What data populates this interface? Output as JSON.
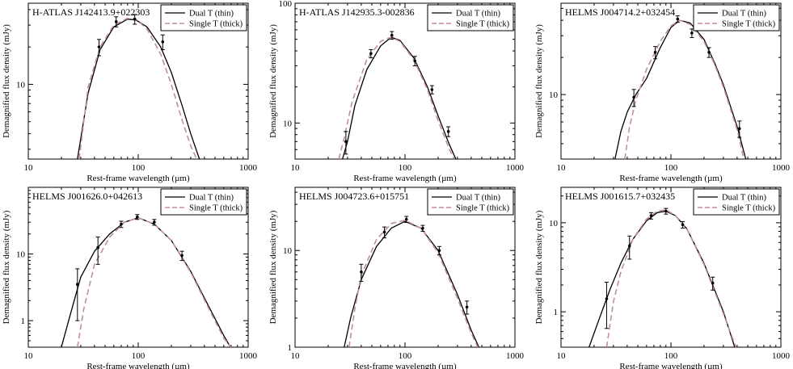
{
  "chart_data": [
    {
      "type": "line",
      "title": "H-ATLAS J142413.9+022303",
      "xlabel": "Rest-frame wavelength (µm)",
      "ylabel": "Demagnified flux density (mJy)",
      "xscale": "log",
      "yscale": "log",
      "xlim": [
        10,
        1000
      ],
      "ylim": [
        2.5,
        45
      ],
      "xticks": [
        10,
        100,
        1000
      ],
      "yticks": [
        10
      ],
      "legend_placement": "top-right",
      "series": [
        {
          "name": "Dual T (thin)",
          "style": "solid",
          "color": "#000000",
          "x": [
            28,
            35,
            45,
            60,
            80,
            95,
            120,
            160,
            200,
            250,
            300,
            360
          ],
          "y": [
            2.5,
            8.5,
            19,
            29,
            33.5,
            33,
            29,
            20,
            12.5,
            6.8,
            4.0,
            2.5
          ]
        },
        {
          "name": "Single T (thick)",
          "style": "dashed",
          "color": "#c09097",
          "x": [
            29,
            35,
            45,
            60,
            80,
            95,
            120,
            160,
            200,
            250,
            300,
            340
          ],
          "y": [
            2.5,
            9.5,
            20,
            30,
            34,
            33.5,
            28,
            17.5,
            10,
            5.2,
            3.2,
            2.5
          ]
        }
      ],
      "points": {
        "x": [
          44,
          63,
          93,
          167
        ],
        "y": [
          20,
          32,
          33.5,
          22
        ],
        "yerr": [
          3,
          3,
          3,
          3
        ]
      }
    },
    {
      "type": "line",
      "title": "H-ATLAS J142935.3-002836",
      "xlabel": "Rest-frame wavelength (µm)",
      "ylabel": "Demagnified flux density (mJy)",
      "xscale": "log",
      "yscale": "log",
      "xlim": [
        10,
        1000
      ],
      "ylim": [
        5,
        100
      ],
      "xticks": [
        10,
        100,
        1000
      ],
      "yticks": [
        10,
        100
      ],
      "legend_placement": "top-right",
      "series": [
        {
          "name": "Dual T (thin)",
          "style": "solid",
          "color": "#000000",
          "x": [
            27,
            30,
            35,
            45,
            60,
            75,
            90,
            120,
            160,
            200,
            250,
            290
          ],
          "y": [
            5,
            7,
            14,
            28,
            44,
            52,
            49,
            35,
            20,
            11.5,
            6.8,
            5
          ]
        },
        {
          "name": "Single T (thick)",
          "style": "dashed",
          "color": "#c09097",
          "x": [
            25,
            28,
            33,
            45,
            60,
            75,
            90,
            120,
            160,
            200,
            250,
            280
          ],
          "y": [
            5,
            7.5,
            15,
            34,
            48,
            52,
            48,
            34,
            19,
            10.5,
            6.2,
            5
          ]
        }
      ],
      "points": {
        "x": [
          29,
          49,
          76,
          123,
          176,
          248
        ],
        "y": [
          7,
          38,
          54,
          33,
          19,
          8.5
        ],
        "yerr": [
          1.5,
          3,
          4,
          3,
          1.5,
          0.8
        ]
      }
    },
    {
      "type": "line",
      "title": "HELMS J004714.2+032454",
      "xlabel": "Rest-frame wavelength (µm)",
      "ylabel": "Demagnified flux density (mJy)",
      "xscale": "log",
      "yscale": "log",
      "xlim": [
        10,
        1000
      ],
      "ylim": [
        3,
        55
      ],
      "xticks": [
        10,
        100,
        1000
      ],
      "yticks": [
        10
      ],
      "legend_placement": "top-right",
      "series": [
        {
          "name": "Dual T (thin)",
          "style": "solid",
          "color": "#000000",
          "x": [
            31,
            35,
            40,
            48,
            60,
            80,
            100,
            120,
            150,
            200,
            250,
            300,
            400,
            480
          ],
          "y": [
            3,
            5,
            7.2,
            10,
            13.5,
            24,
            35,
            40,
            38,
            28,
            18,
            12,
            5.5,
            3
          ]
        },
        {
          "name": "Single T (thick)",
          "style": "dashed",
          "color": "#c09097",
          "x": [
            38,
            42,
            48,
            60,
            80,
            100,
            120,
            150,
            200,
            250,
            300,
            400,
            460
          ],
          "y": [
            3,
            5.5,
            9,
            16,
            27,
            36,
            40,
            37,
            27,
            17.5,
            11.5,
            5.2,
            3
          ]
        }
      ],
      "points": {
        "x": [
          46,
          72,
          115,
          155,
          222,
          420
        ],
        "y": [
          9.5,
          22,
          41,
          31.5,
          22,
          5.3
        ],
        "yerr": [
          1.5,
          2.5,
          2.5,
          2.5,
          2,
          0.8
        ]
      }
    },
    {
      "type": "line",
      "title": "HELMS J001626.0+042613",
      "xlabel": "Rest-frame wavelength (µm)",
      "ylabel": "Demagnified flux density (mJy)",
      "xscale": "log",
      "yscale": "log",
      "xlim": [
        10,
        1000
      ],
      "ylim": [
        0.4,
        100
      ],
      "xticks": [
        10,
        100,
        1000
      ],
      "yticks": [
        1,
        10
      ],
      "legend_placement": "top-right",
      "series": [
        {
          "name": "Dual T (thin)",
          "style": "solid",
          "color": "#000000",
          "x": [
            20,
            24,
            30,
            40,
            55,
            75,
            100,
            140,
            200,
            300,
            450,
            600,
            690
          ],
          "y": [
            0.4,
            1.2,
            4.5,
            11,
            20,
            30,
            35,
            28,
            16,
            5.5,
            1.5,
            0.6,
            0.4
          ]
        },
        {
          "name": "Single T (thick)",
          "style": "dashed",
          "color": "#c09097",
          "x": [
            28,
            32,
            40,
            55,
            75,
            100,
            140,
            200,
            300,
            450,
            600,
            700
          ],
          "y": [
            0.4,
            1.5,
            7,
            18,
            30,
            35,
            28,
            16,
            5.3,
            1.4,
            0.55,
            0.4
          ]
        }
      ],
      "points": {
        "x": [
          28,
          43,
          70,
          98,
          140,
          250
        ],
        "y": [
          3.5,
          12.5,
          28,
          36,
          30,
          9.5
        ],
        "yerr": [
          2.5,
          5.5,
          3,
          3,
          3,
          1.5
        ]
      }
    },
    {
      "type": "line",
      "title": "HELMS J004723.6+015751",
      "xlabel": "Rest-frame wavelength (µm)",
      "ylabel": "Demagnified flux density (mJy)",
      "xscale": "log",
      "yscale": "log",
      "xlim": [
        10,
        1000
      ],
      "ylim": [
        1,
        45
      ],
      "xticks": [
        10,
        100,
        1000
      ],
      "yticks": [
        1,
        10
      ],
      "legend_placement": "top-right",
      "series": [
        {
          "name": "Dual T (thin)",
          "style": "solid",
          "color": "#000000",
          "x": [
            28,
            32,
            40,
            55,
            75,
            100,
            140,
            200,
            300,
            400,
            470
          ],
          "y": [
            1,
            2,
            5,
            11,
            17,
            20,
            17,
            10,
            3.5,
            1.5,
            1
          ]
        },
        {
          "name": "Single T (thick)",
          "style": "dashed",
          "color": "#c09097",
          "x": [
            31,
            35,
            40,
            55,
            75,
            100,
            140,
            200,
            300,
            400,
            460
          ],
          "y": [
            1,
            2.5,
            5.5,
            13,
            19,
            20.5,
            17,
            9.5,
            3.2,
            1.4,
            1
          ]
        }
      ],
      "points": {
        "x": [
          40,
          65,
          103,
          145,
          205,
          366
        ],
        "y": [
          6,
          15.5,
          21,
          17,
          10,
          2.6
        ],
        "yerr": [
          1.2,
          2,
          1.5,
          1.2,
          1,
          0.4
        ]
      }
    },
    {
      "type": "line",
      "title": "HELMS J001615.7+032435",
      "xlabel": "Rest-frame wavelength (µm)",
      "ylabel": "Demagnified flux density (mJy)",
      "xscale": "log",
      "yscale": "log",
      "xlim": [
        10,
        1000
      ],
      "ylim": [
        0.4,
        25
      ],
      "xticks": [
        10,
        100,
        1000
      ],
      "yticks": [
        1,
        10
      ],
      "legend_placement": "top-right",
      "series": [
        {
          "name": "Dual T (thin)",
          "style": "solid",
          "color": "#000000",
          "x": [
            18,
            22,
            28,
            35,
            45,
            60,
            75,
            90,
            110,
            140,
            200,
            300,
            380
          ],
          "y": [
            0.4,
            0.8,
            1.8,
            3.5,
            6.5,
            10.5,
            13,
            13.5,
            12,
            8.5,
            3.5,
            1,
            0.4
          ]
        },
        {
          "name": "Single T (thick)",
          "style": "dashed",
          "color": "#c09097",
          "x": [
            26,
            30,
            35,
            45,
            60,
            75,
            90,
            110,
            140,
            200,
            300,
            390
          ],
          "y": [
            0.4,
            1.3,
            2.8,
            6.5,
            11,
            13.5,
            14,
            12,
            8.5,
            3.4,
            0.95,
            0.4
          ]
        }
      ],
      "points": {
        "x": [
          26,
          42,
          66,
          90,
          128,
          240
        ],
        "y": [
          1.4,
          5.5,
          12,
          13.5,
          9.5,
          2.1
        ],
        "yerr": [
          0.75,
          1.6,
          1,
          1,
          0.8,
          0.35
        ]
      }
    }
  ]
}
